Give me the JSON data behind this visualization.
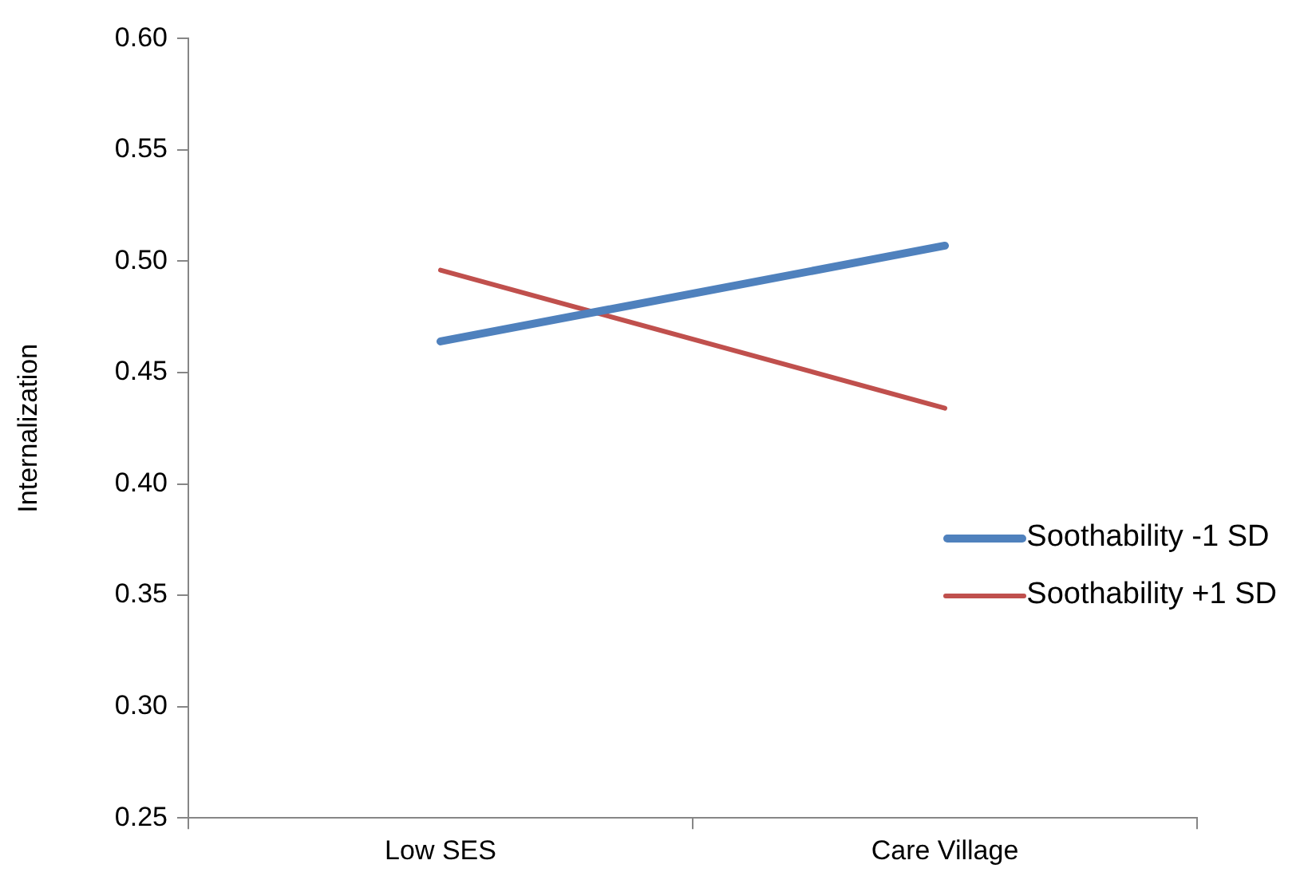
{
  "chart_data": {
    "type": "line",
    "ylabel": "Internalization",
    "categories": [
      "Low SES",
      "Care Village"
    ],
    "series": [
      {
        "name": "Soothability -1 SD",
        "color": "#4f81bd",
        "values": [
          0.464,
          0.507
        ]
      },
      {
        "name": "Soothability +1 SD",
        "color": "#c0504d",
        "values": [
          0.496,
          0.434
        ]
      }
    ],
    "ylim": [
      0.25,
      0.6
    ],
    "yticks": [
      {
        "value": 0.25,
        "label": "0.25"
      },
      {
        "value": 0.3,
        "label": "0.30"
      },
      {
        "value": 0.35,
        "label": "0.35"
      },
      {
        "value": 0.4,
        "label": "0.40"
      },
      {
        "value": 0.45,
        "label": "0.45"
      },
      {
        "value": 0.5,
        "label": "0.50"
      },
      {
        "value": 0.55,
        "label": "0.55"
      },
      {
        "value": 0.6,
        "label": "0.60"
      }
    ],
    "grid": false,
    "legend": "right",
    "marker": "none"
  }
}
